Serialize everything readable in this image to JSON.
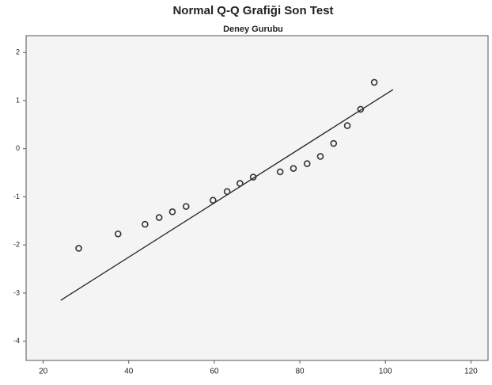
{
  "chart_data": {
    "type": "scatter",
    "title": "Normal Q-Q Grafiği Son Test",
    "subtitle": "Deney Gurubu",
    "series": [
      {
        "color": "#333333",
        "x": [
          28.3,
          37.5,
          43.8,
          47.1,
          50.2,
          53.4,
          59.7,
          63.0,
          66.0,
          69.1,
          75.4,
          78.5,
          81.7,
          84.8,
          87.9,
          91.1,
          94.2,
          97.4
        ],
        "values": [
          -2.07,
          -1.77,
          -1.57,
          -1.43,
          -1.31,
          -1.2,
          -1.07,
          -0.89,
          -0.72,
          -0.59,
          -0.48,
          -0.41,
          -0.31,
          -0.16,
          0.11,
          0.48,
          0.82,
          1.38
        ]
      }
    ],
    "reference_line": {
      "color": "#222222",
      "x": [
        24.1,
        101.8
      ],
      "y": [
        -3.15,
        1.23
      ]
    },
    "xlim": [
      16,
      124
    ],
    "ylim": [
      -4.4,
      2.35
    ],
    "xticks": [
      20,
      40,
      60,
      80,
      100,
      120
    ],
    "yticks": [
      -4,
      -3,
      -2,
      -1,
      0,
      1,
      2
    ]
  }
}
